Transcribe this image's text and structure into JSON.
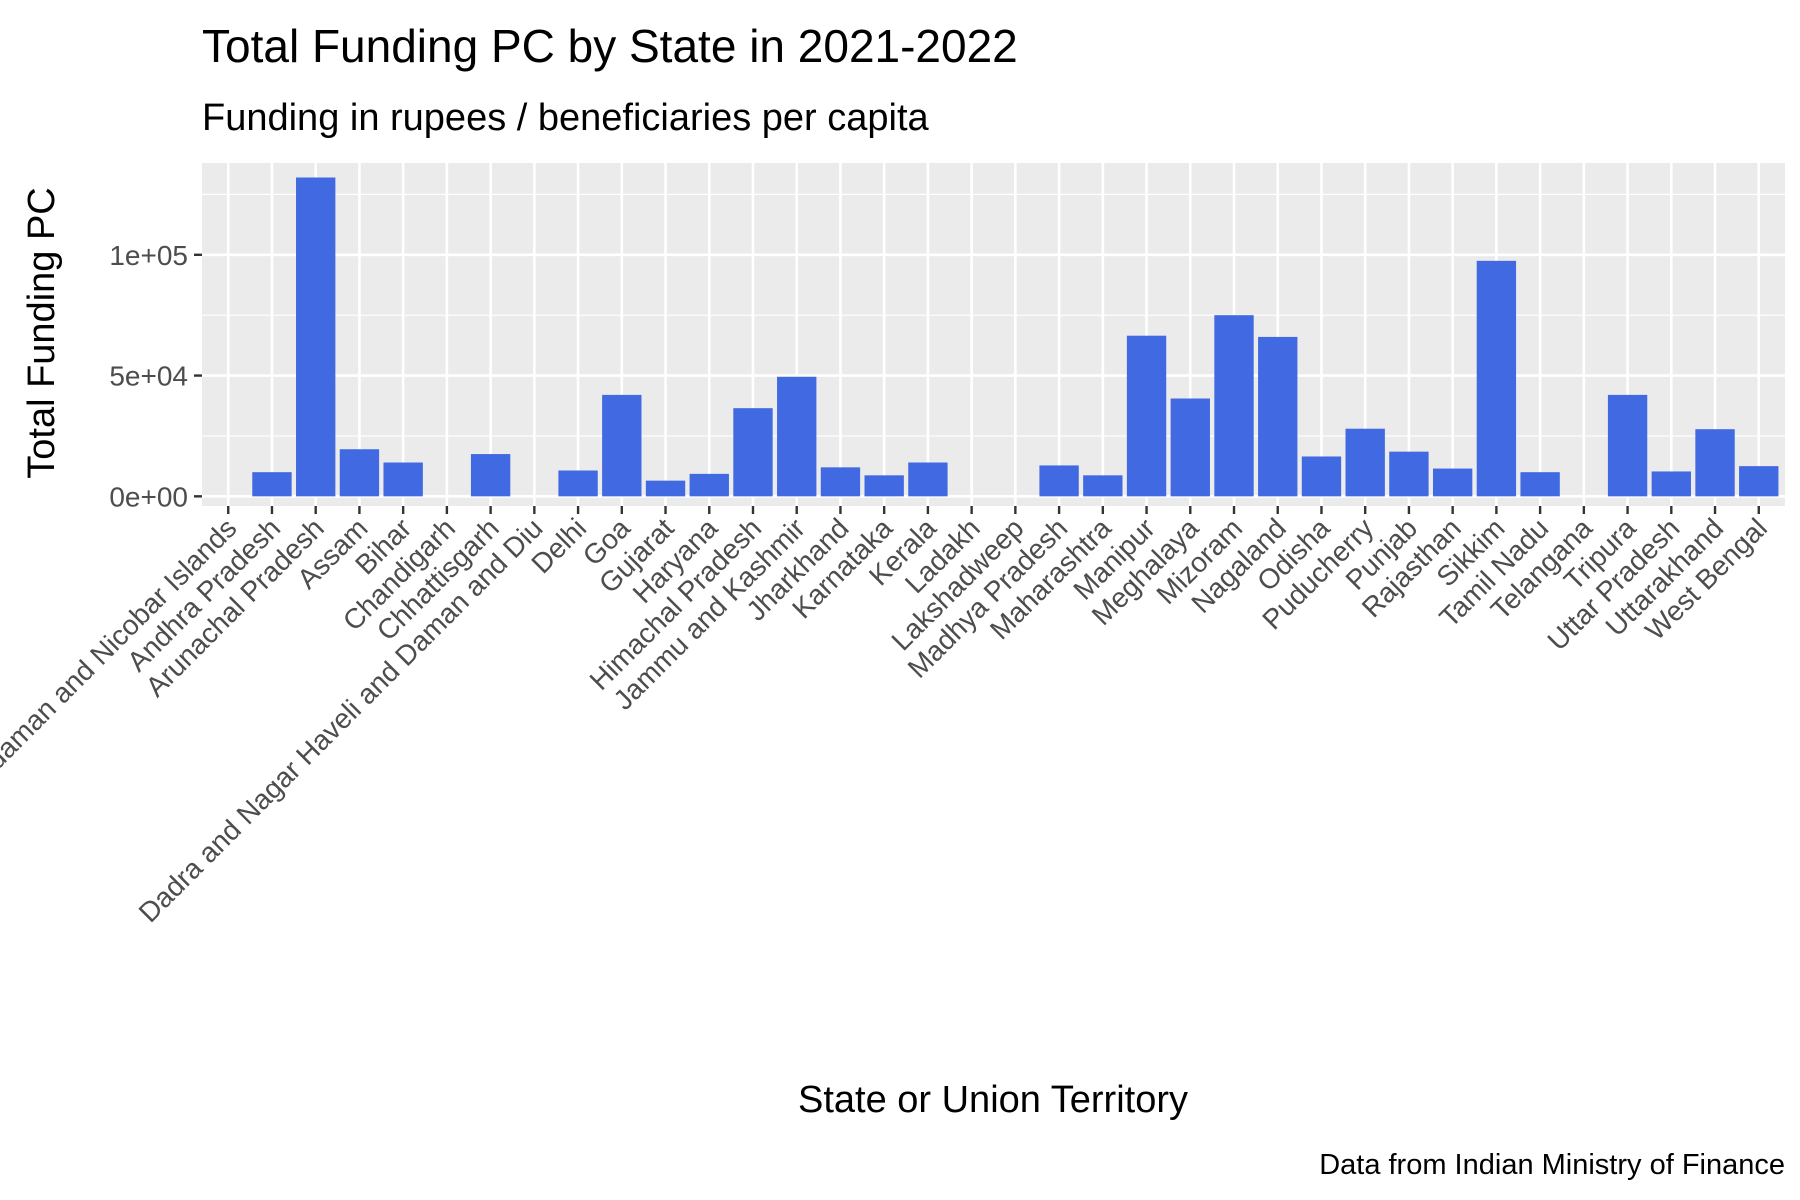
{
  "chart_data": {
    "type": "bar",
    "title": "Total Funding PC by State in 2021-2022",
    "subtitle": "Funding in rupees / beneficiaries per capita",
    "xlabel": "State or Union Territory",
    "ylabel": "Total Funding PC",
    "caption": "Data from Indian Ministry of Finance",
    "ylim": [
      -4000,
      138000
    ],
    "yticks": [
      0,
      50000,
      100000
    ],
    "ytick_labels": [
      "0e+00",
      "5e+04",
      "1e+05"
    ],
    "grid": true,
    "bar_color": "#4169E1",
    "panel_color": "#EBEBEB",
    "categories": [
      "Andaman and Nicobar Islands",
      "Andhra Pradesh",
      "Arunachal Pradesh",
      "Assam",
      "Bihar",
      "Chandigarh",
      "Chhattisgarh",
      "Dadra and Nagar Haveli and Daman and Diu",
      "Delhi",
      "Goa",
      "Gujarat",
      "Haryana",
      "Himachal Pradesh",
      "Jammu and Kashmir",
      "Jharkhand",
      "Karnataka",
      "Kerala",
      "Ladakh",
      "Lakshadweep",
      "Madhya Pradesh",
      "Maharashtra",
      "Manipur",
      "Meghalaya",
      "Mizoram",
      "Nagaland",
      "Odisha",
      "Puducherry",
      "Punjab",
      "Rajasthan",
      "Sikkim",
      "Tamil Nadu",
      "Telangana",
      "Tripura",
      "Uttar Pradesh",
      "Uttarakhand",
      "West Bengal"
    ],
    "values": [
      0,
      10000,
      132000,
      19500,
      14000,
      0,
      17500,
      0,
      10700,
      42000,
      6500,
      9300,
      36500,
      49500,
      12000,
      8700,
      14000,
      0,
      0,
      12800,
      8700,
      66500,
      40500,
      75000,
      66000,
      16500,
      28000,
      18500,
      11500,
      97500,
      10000,
      0,
      42000,
      10300,
      27800,
      12500
    ]
  }
}
